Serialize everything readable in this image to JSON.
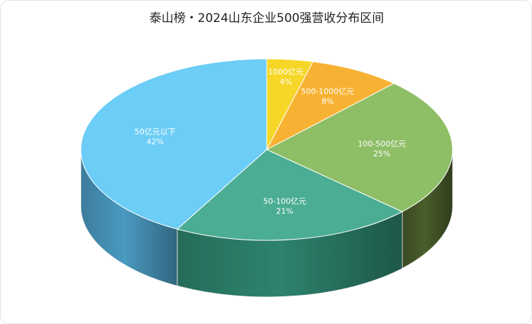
{
  "chart_data": {
    "type": "pie",
    "title": "泰山榜・2024山东企业500强营收分布区间",
    "slices": [
      {
        "label": "1000亿元",
        "value": 4,
        "value_label": "4%",
        "color": "#F6D728",
        "side": "#B99E14"
      },
      {
        "label": "500-1000亿元",
        "value": 8,
        "value_label": "8%",
        "color": "#F8B233",
        "side": "#B27C1F"
      },
      {
        "label": "100-500亿元",
        "value": 25,
        "value_label": "25%",
        "color": "#8EBE66",
        "side": "#4A5E2C"
      },
      {
        "label": "50-100亿元",
        "value": 21,
        "value_label": "21%",
        "color": "#4BAD93",
        "side": "#2E8670"
      },
      {
        "label": "50亿元以下",
        "value": 42,
        "value_label": "42%",
        "color": "#6CCDF6",
        "side": "#4B9CC4"
      }
    ],
    "legend": false
  }
}
